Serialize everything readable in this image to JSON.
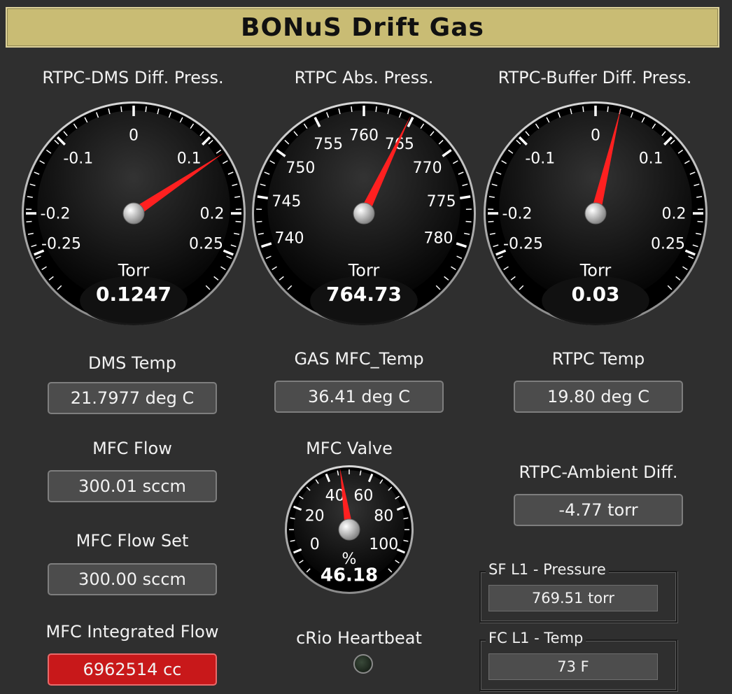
{
  "title": "BONuS Drift Gas",
  "gauges": [
    {
      "label": "RTPC-DMS Diff. Press.",
      "unit": "Torr",
      "value_text": "0.1247",
      "value": 0.1247,
      "min": -0.3,
      "max": 0.3,
      "ticks": [
        {
          "v": -0.25,
          "t": "-0.25"
        },
        {
          "v": -0.2,
          "t": "-0.2"
        },
        {
          "v": -0.1,
          "t": "-0.1"
        },
        {
          "v": 0,
          "t": "0"
        },
        {
          "v": 0.1,
          "t": "0.1"
        },
        {
          "v": 0.2,
          "t": "0.2"
        },
        {
          "v": 0.25,
          "t": "0.25"
        }
      ]
    },
    {
      "label": "RTPC Abs. Press.",
      "unit": "Torr",
      "value_text": "764.73",
      "value": 764.73,
      "min": 735,
      "max": 785,
      "ticks": [
        {
          "v": 740,
          "t": "740"
        },
        {
          "v": 745,
          "t": "745"
        },
        {
          "v": 750,
          "t": "750"
        },
        {
          "v": 755,
          "t": "755"
        },
        {
          "v": 760,
          "t": "760"
        },
        {
          "v": 765,
          "t": "765"
        },
        {
          "v": 770,
          "t": "770"
        },
        {
          "v": 775,
          "t": "775"
        },
        {
          "v": 780,
          "t": "780"
        }
      ]
    },
    {
      "label": "RTPC-Buffer Diff. Press.",
      "unit": "Torr",
      "value_text": "0.03",
      "value": 0.03,
      "min": -0.3,
      "max": 0.3,
      "ticks": [
        {
          "v": -0.25,
          "t": "-0.25"
        },
        {
          "v": -0.2,
          "t": "-0.2"
        },
        {
          "v": -0.1,
          "t": "-0.1"
        },
        {
          "v": 0,
          "t": "0"
        },
        {
          "v": 0.1,
          "t": "0.1"
        },
        {
          "v": 0.2,
          "t": "0.2"
        },
        {
          "v": 0.25,
          "t": "0.25"
        }
      ]
    }
  ],
  "valve_gauge": {
    "label": "MFC Valve",
    "unit": "%",
    "value_text": "46.18",
    "value": 46.18,
    "min": -10,
    "max": 110,
    "ticks": [
      {
        "v": 0,
        "t": "0"
      },
      {
        "v": 20,
        "t": "20"
      },
      {
        "v": 40,
        "t": "40"
      },
      {
        "v": 60,
        "t": "60"
      },
      {
        "v": 80,
        "t": "80"
      },
      {
        "v": 100,
        "t": "100"
      }
    ]
  },
  "readouts": {
    "dms_temp": {
      "label": "DMS Temp",
      "value": "21.7977 deg C"
    },
    "gas_mfc_temp": {
      "label": "GAS MFC_Temp",
      "value": "36.41 deg C"
    },
    "rtpc_temp": {
      "label": "RTPC Temp",
      "value": "19.80 deg C"
    },
    "mfc_flow": {
      "label": "MFC Flow",
      "value": "300.01 sccm"
    },
    "mfc_flow_set": {
      "label": "MFC Flow Set",
      "value": "300.00 sccm"
    },
    "mfc_integrated_flow": {
      "label": "MFC Integrated Flow",
      "value": "6962514 cc"
    },
    "rtpc_ambient_diff": {
      "label": "RTPC-Ambient Diff.",
      "value": "-4.77 torr"
    }
  },
  "heartbeat": {
    "label": "cRio Heartbeat"
  },
  "groups": {
    "sf_l1_pressure": {
      "label": "SF L1 - Pressure",
      "value": "769.51 torr"
    },
    "fc_l1_temp": {
      "label": "FC L1 - Temp",
      "value": "73 F"
    }
  },
  "colors": {
    "needle": "#ff2020",
    "title_bg": "#c9bc74",
    "alarm": "#c8181a"
  }
}
